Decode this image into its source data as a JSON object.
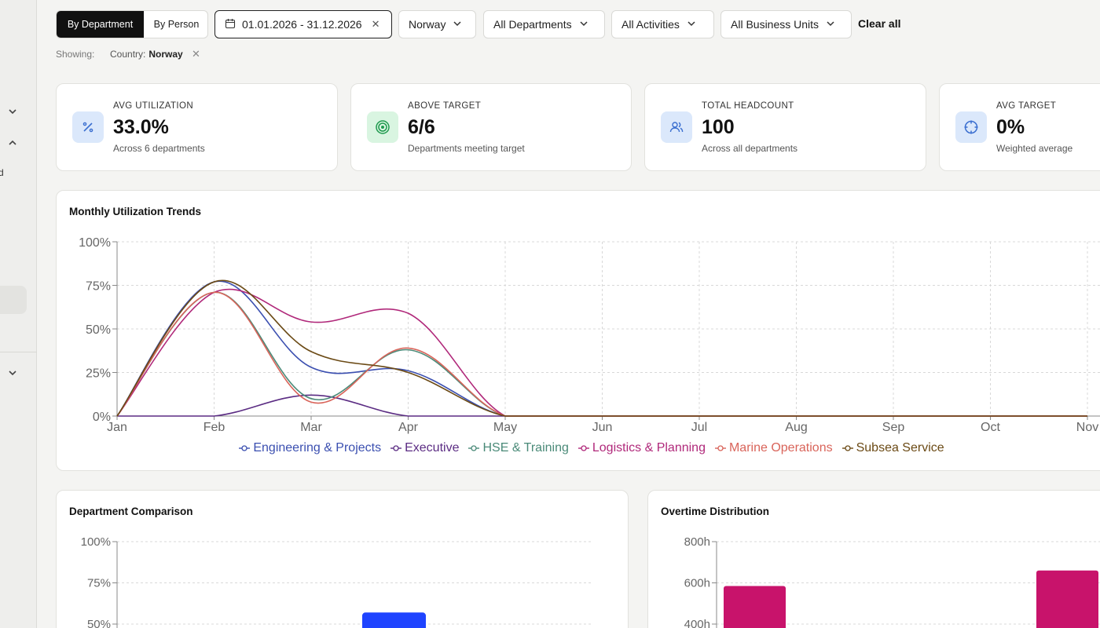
{
  "toolbar": {
    "view_toggle": {
      "active": "By Department",
      "inactive": "By Person"
    },
    "date_range": "01.01.2026 - 31.12.2026",
    "country": "Norway",
    "departments": "All Departments",
    "activities": "All Activities",
    "business_units": "All Business Units",
    "clear_all": "Clear all"
  },
  "filters": {
    "showing_label": "Showing:",
    "chip_key": "Country:",
    "chip_value": "Norway"
  },
  "sidebar": {
    "fragment": "d"
  },
  "kpis": [
    {
      "label": "AVG UTILIZATION",
      "value": "33.0%",
      "sub": "Across 6 departments",
      "icon": "percent-icon",
      "color": "#dbe8fb"
    },
    {
      "label": "ABOVE TARGET",
      "value": "6/6",
      "sub": "Departments meeting target",
      "icon": "target-icon",
      "color": "#d9f5e1"
    },
    {
      "label": "TOTAL HEADCOUNT",
      "value": "100",
      "sub": "Across all departments",
      "icon": "users-icon",
      "color": "#dbe8fb"
    },
    {
      "label": "AVG TARGET",
      "value": "0%",
      "sub": "Weighted average",
      "icon": "crosshair-icon",
      "color": "#dbe8fb"
    }
  ],
  "trend": {
    "title": "Monthly Utilization Trends",
    "chart_data": {
      "type": "line",
      "x": [
        "Jan",
        "Feb",
        "Mar",
        "Apr",
        "May",
        "Jun",
        "Jul",
        "Aug",
        "Sep",
        "Oct",
        "Nov"
      ],
      "ylim": [
        0,
        100
      ],
      "yticks": [
        "0%",
        "25%",
        "50%",
        "75%",
        "100%"
      ],
      "grid": true,
      "legend": "bottom",
      "series": [
        {
          "name": "Engineering & Projects",
          "color": "#3b4fb0",
          "values": [
            0,
            77,
            28,
            26,
            0,
            0,
            0,
            0,
            0,
            0,
            0
          ]
        },
        {
          "name": "Executive",
          "color": "#5b2c83",
          "values": [
            0,
            0,
            12,
            0,
            0,
            0,
            0,
            0,
            0,
            0,
            0
          ]
        },
        {
          "name": "HSE & Training",
          "color": "#4a8a78",
          "values": [
            0,
            71,
            10,
            38,
            0,
            0,
            0,
            0,
            0,
            0,
            0
          ]
        },
        {
          "name": "Logistics & Planning",
          "color": "#b0287a",
          "values": [
            0,
            71,
            54,
            59,
            0,
            0,
            0,
            0,
            0,
            0,
            0
          ]
        },
        {
          "name": "Marine Operations",
          "color": "#d9645a",
          "values": [
            0,
            71,
            8,
            39,
            0,
            0,
            0,
            0,
            0,
            0,
            0
          ]
        },
        {
          "name": "Subsea Service",
          "color": "#6b4a15",
          "values": [
            0,
            77,
            37,
            25,
            0,
            0,
            0,
            0,
            0,
            0,
            0
          ]
        }
      ]
    }
  },
  "comparison": {
    "title": "Department Comparison",
    "chart_data": {
      "type": "bar",
      "yticks": [
        "50%",
        "75%",
        "100%"
      ],
      "ylim": [
        0,
        100
      ],
      "grid": true,
      "values_visible": [
        57
      ],
      "color": "#1f44ff"
    }
  },
  "overtime": {
    "title": "Overtime Distribution",
    "chart_data": {
      "type": "bar",
      "yticks": [
        "400h",
        "600h",
        "800h"
      ],
      "ylim": [
        0,
        800
      ],
      "grid": true,
      "values_visible": [
        585,
        660
      ],
      "color": "#c8136b"
    }
  }
}
